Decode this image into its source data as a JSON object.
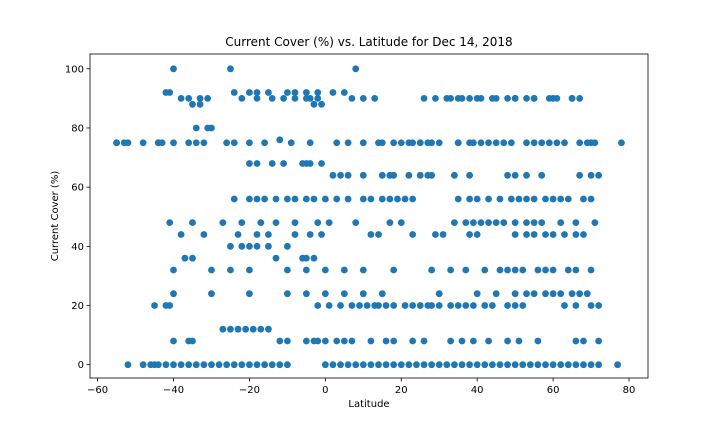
{
  "chart_data": {
    "type": "scatter",
    "title": "Current Cover (%) vs. Latitude for Dec 14, 2018",
    "xlabel": "Latitude",
    "ylabel": "Current Cover (%)",
    "xlim": [
      -62,
      85
    ],
    "ylim": [
      -4.5,
      105
    ],
    "xticks": [
      -60,
      -40,
      -20,
      0,
      20,
      40,
      60,
      80
    ],
    "yticks": [
      0,
      20,
      40,
      60,
      80,
      100
    ],
    "grid": false,
    "color": "#1f77b4",
    "series": [
      {
        "x": [
          -55,
          -53,
          -44,
          -43,
          -40,
          -41,
          -42,
          -35,
          -33,
          -30,
          -25,
          -24,
          -20,
          -18,
          -15,
          -12,
          -10,
          -8,
          -5,
          -3,
          -2,
          -1,
          2,
          5,
          8,
          10,
          15,
          18,
          20,
          22,
          25,
          28,
          30,
          35,
          40,
          45,
          50,
          55,
          60,
          65,
          70,
          -52,
          -48,
          -46,
          -45,
          -44,
          -42,
          -40,
          -38,
          -36,
          -34,
          -32,
          -30,
          -28,
          -26,
          -24,
          -22,
          -20,
          -18,
          -16,
          -14,
          -12,
          -10,
          0,
          2,
          4,
          6,
          8,
          10,
          12,
          14,
          16,
          18,
          20,
          22,
          24,
          26,
          28,
          30,
          32,
          34,
          36,
          38,
          40,
          42,
          44,
          46,
          48,
          50,
          52,
          54,
          56,
          58,
          60,
          62,
          64,
          66,
          68,
          70,
          72,
          77,
          -45,
          -42,
          -41,
          -37,
          -35,
          -25,
          -22,
          -20,
          -18,
          -15,
          -13,
          -10,
          -6,
          -5,
          -3,
          -2,
          1,
          4,
          7,
          9,
          11,
          13,
          14,
          16,
          18,
          21,
          23,
          25,
          27,
          28,
          30,
          33,
          35,
          37,
          39,
          42,
          44,
          48,
          50,
          52,
          63,
          66,
          70,
          72,
          -31,
          -34,
          -20,
          -18,
          -14,
          -11,
          -6,
          -5,
          -4,
          -1,
          2,
          4,
          6,
          10,
          15,
          17,
          18,
          22,
          25,
          27,
          28,
          34,
          38,
          48,
          50,
          53,
          57,
          67,
          70,
          72,
          -40,
          -36,
          -35,
          -27,
          -25,
          -23,
          -21,
          -19,
          -17,
          -15,
          -12,
          -10,
          -5,
          -3,
          -2,
          0,
          3,
          5,
          7,
          12,
          16,
          18,
          23,
          26,
          33,
          36,
          39,
          43,
          48,
          51,
          56,
          66,
          68,
          72,
          -40,
          -30,
          -20,
          -10,
          -5,
          0,
          5,
          10,
          15,
          30,
          40,
          45,
          50,
          53,
          55,
          58,
          60,
          62,
          65,
          67,
          69,
          -38,
          -32,
          -23,
          -18,
          -15,
          -8,
          -4,
          -1,
          12,
          14,
          23,
          29,
          31,
          38,
          40,
          50,
          53,
          55,
          58,
          60,
          63,
          66,
          68,
          -24,
          -20,
          -18,
          -16,
          -13,
          -10,
          -8,
          -5,
          -3,
          0,
          3,
          6,
          10,
          12,
          15,
          17,
          19,
          21,
          23,
          35,
          38,
          40,
          43,
          46,
          49,
          51,
          53,
          55,
          58,
          60,
          62,
          64,
          68,
          70,
          -55,
          -52,
          -48,
          -44,
          -40,
          -36,
          -34,
          -32,
          -26,
          -24,
          -20,
          -16,
          -9,
          -4,
          3,
          6,
          14,
          23,
          25,
          27,
          35,
          38,
          39,
          41,
          43,
          45,
          47,
          49,
          53,
          55,
          57,
          59,
          61,
          63,
          67,
          69,
          71,
          78,
          -38,
          -36,
          -33,
          -31,
          -22,
          -18,
          -14,
          -11,
          -8,
          -5,
          -4,
          -2,
          7,
          10,
          13,
          26,
          29,
          32,
          33,
          35,
          36,
          38,
          41,
          44,
          48,
          50,
          53,
          55,
          59,
          61,
          65,
          67,
          -40,
          -30,
          -25,
          -20,
          -10,
          -5,
          0,
          5,
          10,
          18,
          28,
          33,
          37,
          42,
          46,
          48,
          50,
          52,
          56,
          58,
          60,
          64,
          66,
          70,
          -41,
          -35,
          -27,
          -22,
          -17,
          -13,
          -8,
          -2,
          1,
          8,
          17,
          20,
          34,
          37,
          39,
          41,
          43,
          45,
          47,
          50,
          53,
          55,
          57,
          62,
          66,
          71
        ],
        "y": [
          75,
          75,
          75,
          75,
          100,
          92,
          92,
          88,
          88,
          80,
          100,
          92,
          92,
          92,
          92,
          76,
          92,
          92,
          92,
          88,
          92,
          88,
          92,
          92,
          100,
          75,
          75,
          75,
          75,
          75,
          75,
          75,
          75,
          75,
          90,
          90,
          90,
          90,
          90,
          90,
          75,
          0,
          0,
          0,
          0,
          0,
          0,
          0,
          0,
          0,
          0,
          0,
          0,
          0,
          0,
          0,
          0,
          0,
          0,
          0,
          0,
          0,
          0,
          0,
          0,
          0,
          0,
          0,
          0,
          0,
          0,
          0,
          0,
          0,
          0,
          0,
          0,
          0,
          0,
          0,
          0,
          0,
          0,
          0,
          0,
          0,
          0,
          0,
          0,
          0,
          0,
          0,
          0,
          0,
          0,
          0,
          0,
          0,
          0,
          0,
          0,
          20,
          20,
          20,
          36,
          36,
          40,
          40,
          40,
          40,
          40,
          36,
          40,
          36,
          36,
          36,
          20,
          20,
          20,
          20,
          20,
          20,
          20,
          20,
          20,
          20,
          20,
          20,
          20,
          20,
          20,
          20,
          20,
          20,
          20,
          20,
          20,
          20,
          20,
          20,
          20,
          20,
          20,
          20,
          20,
          80,
          80,
          68,
          68,
          68,
          68,
          68,
          68,
          68,
          68,
          64,
          64,
          64,
          64,
          64,
          64,
          64,
          64,
          64,
          64,
          64,
          64,
          64,
          64,
          64,
          64,
          64,
          64,
          64,
          64,
          8,
          8,
          8,
          12,
          12,
          12,
          12,
          12,
          12,
          12,
          8,
          8,
          8,
          8,
          8,
          8,
          8,
          8,
          8,
          8,
          8,
          8,
          8,
          8,
          8,
          8,
          8,
          8,
          8,
          8,
          8,
          8,
          8,
          8,
          24,
          24,
          24,
          24,
          24,
          24,
          24,
          24,
          24,
          24,
          24,
          24,
          24,
          24,
          24,
          24,
          24,
          24,
          24,
          24,
          24,
          44,
          44,
          44,
          44,
          44,
          44,
          44,
          44,
          44,
          44,
          44,
          44,
          44,
          44,
          44,
          44,
          44,
          44,
          44,
          44,
          44,
          44,
          44,
          56,
          56,
          56,
          56,
          56,
          56,
          56,
          56,
          56,
          56,
          56,
          56,
          56,
          56,
          56,
          56,
          56,
          56,
          56,
          56,
          56,
          56,
          56,
          56,
          56,
          56,
          56,
          56,
          56,
          56,
          56,
          56,
          56,
          56,
          75,
          75,
          75,
          75,
          75,
          75,
          75,
          75,
          75,
          75,
          75,
          75,
          75,
          75,
          75,
          75,
          75,
          75,
          75,
          75,
          75,
          75,
          75,
          75,
          75,
          75,
          75,
          75,
          75,
          75,
          75,
          75,
          75,
          75,
          75,
          75,
          75,
          75,
          90,
          90,
          90,
          90,
          90,
          90,
          90,
          90,
          90,
          90,
          90,
          90,
          90,
          90,
          90,
          90,
          90,
          90,
          90,
          90,
          90,
          90,
          90,
          90,
          90,
          90,
          90,
          90,
          90,
          90,
          90,
          90,
          32,
          32,
          32,
          32,
          32,
          32,
          32,
          32,
          32,
          32,
          32,
          32,
          32,
          32,
          32,
          32,
          32,
          32,
          32,
          32,
          32,
          32,
          32,
          32,
          48,
          48,
          48,
          48,
          48,
          48,
          48,
          48,
          48,
          48,
          48,
          48,
          48,
          48,
          48,
          48,
          48,
          48,
          48,
          48,
          48,
          48,
          48,
          48,
          48,
          48
        ]
      }
    ]
  }
}
